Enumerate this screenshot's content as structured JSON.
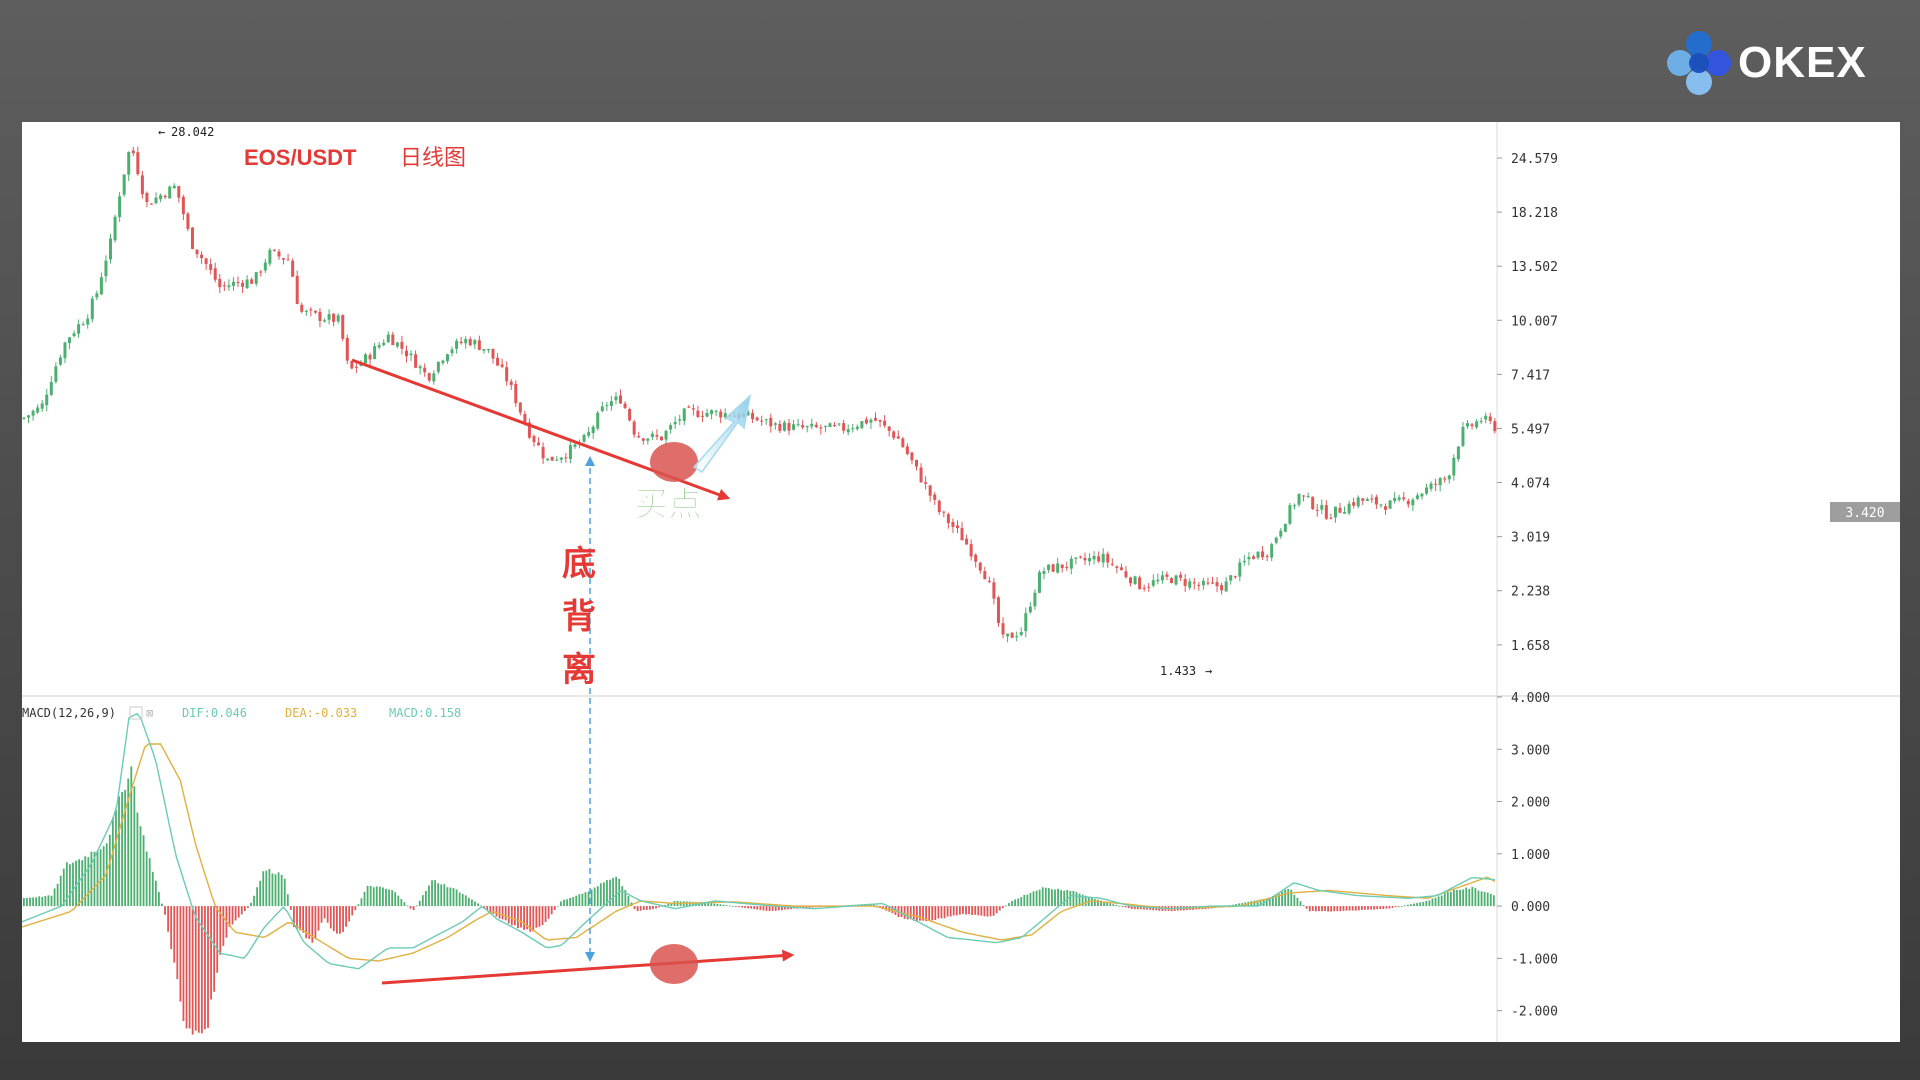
{
  "brand": {
    "name": "OKEX",
    "logo_colors": [
      "#1f6fd8",
      "#6fb7f4",
      "#2f54eb",
      "#8cc8ff",
      "#1a4fbf"
    ]
  },
  "chart_data": [
    {
      "type": "candlestick",
      "title": "EOS/USDT",
      "subtitle": "日线图",
      "scale": "log",
      "ylim": [
        1.35,
        30
      ],
      "y_ticks": [
        "24.579",
        "18.218",
        "13.502",
        "10.007",
        "7.417",
        "5.497",
        "4.074",
        "3.019",
        "2.238",
        "1.658"
      ],
      "last_price": "3.420",
      "high_marker": "28.042",
      "low_marker": "1.433",
      "colors": {
        "up": "#4caf6f",
        "down": "#e05555"
      },
      "close_path": [
        [
          0,
          5.8
        ],
        [
          20,
          6.2
        ],
        [
          45,
          9.0
        ],
        [
          65,
          10.2
        ],
        [
          75,
          11.5
        ],
        [
          90,
          15.5
        ],
        [
          110,
          26.5
        ],
        [
          125,
          19.0
        ],
        [
          155,
          21.0
        ],
        [
          170,
          15.5
        ],
        [
          200,
          12.0
        ],
        [
          215,
          12.3
        ],
        [
          235,
          12.5
        ],
        [
          250,
          14.5
        ],
        [
          270,
          14.0
        ],
        [
          280,
          10.5
        ],
        [
          300,
          10.2
        ],
        [
          320,
          10.0
        ],
        [
          330,
          7.5
        ],
        [
          350,
          8.2
        ],
        [
          370,
          9.2
        ],
        [
          390,
          8.3
        ],
        [
          410,
          7.3
        ],
        [
          430,
          8.5
        ],
        [
          450,
          9.0
        ],
        [
          470,
          8.5
        ],
        [
          490,
          7.2
        ],
        [
          510,
          5.5
        ],
        [
          530,
          4.6
        ],
        [
          550,
          4.8
        ],
        [
          570,
          5.2
        ],
        [
          590,
          6.3
        ],
        [
          605,
          6.5
        ],
        [
          620,
          5.3
        ],
        [
          645,
          5.2
        ],
        [
          670,
          6.0
        ],
        [
          700,
          6.0
        ],
        [
          730,
          5.9
        ],
        [
          760,
          5.6
        ],
        [
          790,
          5.5
        ],
        [
          830,
          5.5
        ],
        [
          860,
          5.8
        ],
        [
          885,
          5.2
        ],
        [
          905,
          4.3
        ],
        [
          925,
          3.5
        ],
        [
          950,
          3.0
        ],
        [
          975,
          2.4
        ],
        [
          990,
          1.7
        ],
        [
          1010,
          1.8
        ],
        [
          1030,
          2.5
        ],
        [
          1060,
          2.6
        ],
        [
          1090,
          2.7
        ],
        [
          1110,
          2.5
        ],
        [
          1130,
          2.3
        ],
        [
          1160,
          2.4
        ],
        [
          1190,
          2.3
        ],
        [
          1215,
          2.3
        ],
        [
          1240,
          2.7
        ],
        [
          1260,
          2.8
        ],
        [
          1290,
          3.8
        ],
        [
          1320,
          3.4
        ],
        [
          1350,
          3.7
        ],
        [
          1380,
          3.6
        ],
        [
          1400,
          3.7
        ],
        [
          1425,
          4.0
        ],
        [
          1440,
          4.2
        ],
        [
          1455,
          5.4
        ],
        [
          1475,
          5.8
        ],
        [
          1490,
          5.5
        ]
      ]
    },
    {
      "type": "macd",
      "label": "MACD(12,26,9)",
      "dif_text": "DIF:0.046",
      "dea_text": "DEA:-0.033",
      "macd_text": "MACD:0.158",
      "ylim": [
        -2.6,
        4.0
      ],
      "y_ticks": [
        "4.000",
        "3.000",
        "2.000",
        "1.000",
        "0.000",
        "-1.000",
        "-2.000"
      ],
      "colors": {
        "dif": "#6ccbb4",
        "dea": "#e0b040",
        "hist_up": "#4caf6f",
        "hist_down": "#e05555"
      },
      "histogram_path": [
        [
          0,
          0.15
        ],
        [
          30,
          0.2
        ],
        [
          45,
          0.8
        ],
        [
          60,
          0.9
        ],
        [
          85,
          1.2
        ],
        [
          110,
          2.7
        ],
        [
          120,
          1.5
        ],
        [
          135,
          0.5
        ],
        [
          145,
          -0.2
        ],
        [
          165,
          -2.3
        ],
        [
          185,
          -2.5
        ],
        [
          200,
          -1.0
        ],
        [
          210,
          -0.4
        ],
        [
          230,
          0.0
        ],
        [
          245,
          0.7
        ],
        [
          265,
          0.6
        ],
        [
          275,
          -0.4
        ],
        [
          295,
          -0.7
        ],
        [
          305,
          -0.2
        ],
        [
          315,
          -0.5
        ],
        [
          325,
          -0.5
        ],
        [
          350,
          0.4
        ],
        [
          375,
          0.3
        ],
        [
          395,
          -0.1
        ],
        [
          415,
          0.5
        ],
        [
          440,
          0.3
        ],
        [
          465,
          0.0
        ],
        [
          480,
          -0.2
        ],
        [
          500,
          -0.4
        ],
        [
          515,
          -0.5
        ],
        [
          530,
          -0.3
        ],
        [
          545,
          0.1
        ],
        [
          575,
          0.3
        ],
        [
          600,
          0.6
        ],
        [
          610,
          0.3
        ],
        [
          620,
          -0.1
        ],
        [
          640,
          -0.05
        ],
        [
          660,
          0.1
        ],
        [
          700,
          0.05
        ],
        [
          755,
          -0.1
        ],
        [
          780,
          -0.05
        ],
        [
          860,
          0.05
        ],
        [
          885,
          -0.2
        ],
        [
          905,
          -0.3
        ],
        [
          925,
          -0.25
        ],
        [
          950,
          -0.15
        ],
        [
          980,
          -0.2
        ],
        [
          1000,
          0.1
        ],
        [
          1030,
          0.35
        ],
        [
          1060,
          0.3
        ],
        [
          1090,
          0.1
        ],
        [
          1120,
          -0.05
        ],
        [
          1160,
          -0.1
        ],
        [
          1200,
          -0.05
        ],
        [
          1230,
          0.05
        ],
        [
          1260,
          0.15
        ],
        [
          1280,
          0.35
        ],
        [
          1300,
          -0.1
        ],
        [
          1330,
          -0.1
        ],
        [
          1380,
          -0.05
        ],
        [
          1420,
          0.1
        ],
        [
          1445,
          0.3
        ],
        [
          1465,
          0.35
        ],
        [
          1490,
          0.2
        ]
      ],
      "dif_path": [
        [
          0,
          -0.3
        ],
        [
          40,
          0.0
        ],
        [
          70,
          0.8
        ],
        [
          95,
          1.8
        ],
        [
          108,
          3.6
        ],
        [
          118,
          3.7
        ],
        [
          135,
          2.8
        ],
        [
          155,
          1.0
        ],
        [
          175,
          -0.2
        ],
        [
          200,
          -0.9
        ],
        [
          225,
          -1.0
        ],
        [
          245,
          -0.4
        ],
        [
          265,
          0.0
        ],
        [
          285,
          -0.7
        ],
        [
          310,
          -1.1
        ],
        [
          340,
          -1.2
        ],
        [
          370,
          -0.8
        ],
        [
          395,
          -0.8
        ],
        [
          415,
          -0.6
        ],
        [
          445,
          -0.3
        ],
        [
          465,
          0.0
        ],
        [
          480,
          -0.25
        ],
        [
          505,
          -0.5
        ],
        [
          530,
          -0.8
        ],
        [
          545,
          -0.75
        ],
        [
          570,
          -0.3
        ],
        [
          605,
          0.3
        ],
        [
          625,
          0.1
        ],
        [
          660,
          -0.05
        ],
        [
          700,
          0.1
        ],
        [
          760,
          0.0
        ],
        [
          800,
          -0.05
        ],
        [
          870,
          0.05
        ],
        [
          905,
          -0.3
        ],
        [
          935,
          -0.6
        ],
        [
          960,
          -0.65
        ],
        [
          985,
          -0.7
        ],
        [
          1010,
          -0.6
        ],
        [
          1035,
          -0.2
        ],
        [
          1060,
          0.2
        ],
        [
          1090,
          0.15
        ],
        [
          1120,
          0.0
        ],
        [
          1160,
          -0.05
        ],
        [
          1200,
          0.0
        ],
        [
          1250,
          0.0
        ],
        [
          1285,
          0.45
        ],
        [
          1310,
          0.3
        ],
        [
          1350,
          0.2
        ],
        [
          1400,
          0.15
        ],
        [
          1430,
          0.2
        ],
        [
          1465,
          0.55
        ],
        [
          1490,
          0.5
        ]
      ],
      "dea_path": [
        [
          0,
          -0.4
        ],
        [
          50,
          -0.1
        ],
        [
          85,
          0.6
        ],
        [
          110,
          2.2
        ],
        [
          125,
          3.1
        ],
        [
          140,
          3.1
        ],
        [
          160,
          2.4
        ],
        [
          175,
          1.2
        ],
        [
          195,
          0.0
        ],
        [
          215,
          -0.5
        ],
        [
          245,
          -0.6
        ],
        [
          270,
          -0.3
        ],
        [
          295,
          -0.6
        ],
        [
          330,
          -1.0
        ],
        [
          360,
          -1.05
        ],
        [
          395,
          -0.9
        ],
        [
          430,
          -0.6
        ],
        [
          460,
          -0.25
        ],
        [
          475,
          -0.1
        ],
        [
          505,
          -0.3
        ],
        [
          530,
          -0.65
        ],
        [
          560,
          -0.6
        ],
        [
          600,
          -0.1
        ],
        [
          625,
          0.1
        ],
        [
          660,
          0.05
        ],
        [
          720,
          0.08
        ],
        [
          780,
          0.0
        ],
        [
          860,
          0.0
        ],
        [
          905,
          -0.2
        ],
        [
          950,
          -0.5
        ],
        [
          990,
          -0.65
        ],
        [
          1020,
          -0.55
        ],
        [
          1050,
          -0.1
        ],
        [
          1080,
          0.1
        ],
        [
          1110,
          0.05
        ],
        [
          1160,
          -0.05
        ],
        [
          1230,
          0.0
        ],
        [
          1280,
          0.25
        ],
        [
          1320,
          0.3
        ],
        [
          1380,
          0.2
        ],
        [
          1420,
          0.15
        ],
        [
          1450,
          0.35
        ],
        [
          1480,
          0.55
        ],
        [
          1490,
          0.45
        ]
      ]
    }
  ],
  "annotations": {
    "divergence_label": [
      "底",
      "背",
      "离"
    ],
    "buy_label": "买点",
    "colors": {
      "arrow": "#e53935",
      "divergence_line": "#4aa3df",
      "buy_text": "#49a636",
      "marker": "#d9534f"
    }
  }
}
